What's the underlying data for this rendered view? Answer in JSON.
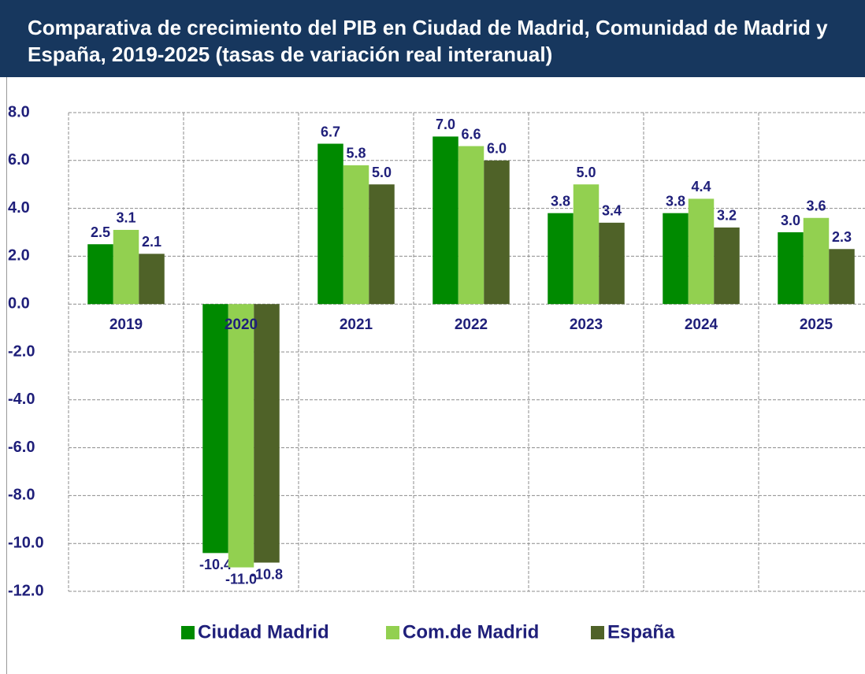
{
  "chart_data": {
    "type": "bar",
    "title": "Comparativa de crecimiento del PIB en Ciudad de Madrid, Comunidad de Madrid y España, 2019-2025 (tasas de variación real interanual)",
    "categories": [
      "2019",
      "2020",
      "2021",
      "2022",
      "2023",
      "2024",
      "2025"
    ],
    "series": [
      {
        "name": "Ciudad Madrid",
        "color": "#008a00",
        "values": [
          2.5,
          -10.4,
          6.7,
          7.0,
          3.8,
          3.8,
          3.0
        ],
        "value_labels": [
          "2.5",
          "-10.4",
          "6.7",
          "7.0",
          "3.8",
          "3.8",
          "3.0"
        ]
      },
      {
        "name": "Com.de Madrid",
        "color": "#92d050",
        "values": [
          3.1,
          -11.0,
          5.8,
          6.6,
          5.0,
          4.4,
          3.6
        ],
        "value_labels": [
          "3.1",
          "-11.0",
          "5.8",
          "6.6",
          "5.0",
          "4.4",
          "3.6"
        ]
      },
      {
        "name": "España",
        "color": "#4f6228",
        "values": [
          2.1,
          -10.8,
          5.0,
          6.0,
          3.4,
          3.2,
          2.3
        ],
        "value_labels": [
          "2.1",
          "-10.8",
          "5.0",
          "6.0",
          "3.4",
          "3.2",
          "2.3"
        ]
      }
    ],
    "ylim": [
      -12,
      8
    ],
    "yticks": [
      {
        "value": -12,
        "label": "-12.0"
      },
      {
        "value": -10,
        "label": "-10.0"
      },
      {
        "value": -8,
        "label": "-8.0"
      },
      {
        "value": -6,
        "label": "-6.0"
      },
      {
        "value": -4,
        "label": "-4.0"
      },
      {
        "value": -2,
        "label": "-2.0"
      },
      {
        "value": 0,
        "label": "0.0"
      },
      {
        "value": 2,
        "label": "2.0"
      },
      {
        "value": 4,
        "label": "4.0"
      },
      {
        "value": 6,
        "label": "6.0"
      },
      {
        "value": 8,
        "label": "8.0"
      }
    ],
    "grid": true,
    "legend": "bottom"
  }
}
